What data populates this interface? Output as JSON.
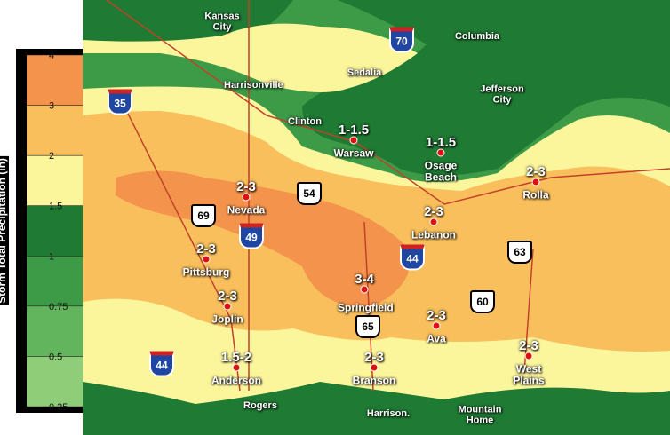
{
  "legend": {
    "title": "Storm Total Precipitation (in)",
    "ticks": [
      4,
      3,
      2,
      1.5,
      1,
      0.75,
      0.5,
      0.25
    ],
    "colors": [
      "#f4944c",
      "#f8bf5c",
      "#fbf59c",
      "#1f7a33",
      "#3d9b47",
      "#62b55c",
      "#8fcd79"
    ]
  },
  "cities": [
    "Kansas City",
    "Columbia",
    "Sedalia",
    "Harrisonville",
    "Jefferson City",
    "Clinton",
    "Rogers",
    "Harrison.",
    "Mountain Home"
  ],
  "forecasts": [
    {
      "amount": "1-1.5",
      "name": "Warsaw"
    },
    {
      "amount": "1-1.5",
      "name": "Osage Beach"
    },
    {
      "amount": "2-3",
      "name": "Rolla"
    },
    {
      "amount": "2-3",
      "name": "Nevada"
    },
    {
      "amount": "2-3",
      "name": "Lebanon"
    },
    {
      "amount": "2-3",
      "name": "Pittsburg"
    },
    {
      "amount": "3-4",
      "name": "Springfield"
    },
    {
      "amount": "2-3",
      "name": "Joplin"
    },
    {
      "amount": "2-3",
      "name": "Ava"
    },
    {
      "amount": "1.5-2",
      "name": "Anderson"
    },
    {
      "amount": "2-3",
      "name": "Branson"
    },
    {
      "amount": "2-3",
      "name": "West Plains"
    }
  ],
  "highways": [
    {
      "label": "70",
      "kind": "interstate"
    },
    {
      "label": "35",
      "kind": "interstate"
    },
    {
      "label": "54",
      "kind": "us"
    },
    {
      "label": "69",
      "kind": "us"
    },
    {
      "label": "49",
      "kind": "interstate"
    },
    {
      "label": "44",
      "kind": "interstate"
    },
    {
      "label": "63",
      "kind": "us"
    },
    {
      "label": "60",
      "kind": "us"
    },
    {
      "label": "65",
      "kind": "us"
    },
    {
      "label": "44",
      "kind": "interstate"
    }
  ]
}
